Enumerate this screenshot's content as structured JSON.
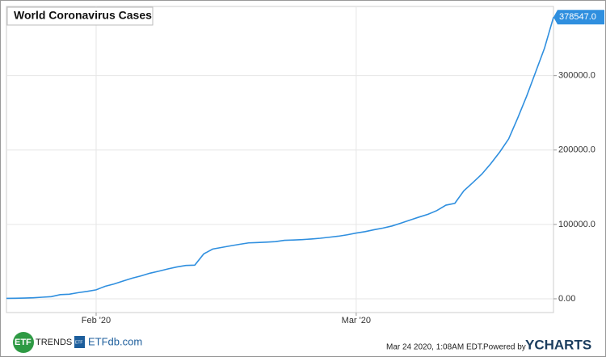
{
  "chart_data": {
    "type": "line",
    "title": "World Coronavirus Cases",
    "categories": [
      null,
      null,
      null,
      null,
      null,
      null,
      null,
      null,
      null,
      null,
      "Feb '20",
      null,
      null,
      null,
      null,
      null,
      null,
      null,
      null,
      null,
      null,
      null,
      null,
      null,
      null,
      null,
      null,
      null,
      null,
      null,
      null,
      null,
      null,
      null,
      null,
      null,
      null,
      null,
      null,
      "Mar '20",
      null,
      null,
      null,
      null,
      null,
      null,
      null,
      null,
      null,
      null,
      null,
      null,
      null,
      null,
      null,
      null,
      null,
      null,
      null,
      null,
      null,
      null
    ],
    "values": [
      555,
      654,
      941,
      1434,
      2118,
      2927,
      5578,
      6166,
      8234,
      9927,
      12038,
      16787,
      19881,
      23892,
      27635,
      30794,
      34391,
      37120,
      40150,
      42762,
      44802,
      45221,
      60368,
      66885,
      69030,
      71224,
      73258,
      75136,
      75639,
      76197,
      76823,
      78579,
      78965,
      79568,
      80413,
      81395,
      82754,
      84120,
      86011,
      88369,
      90306,
      92840,
      95120,
      97886,
      101800,
      105847,
      109821,
      113590,
      118620,
      125875,
      128343,
      145193,
      156097,
      167449,
      181546,
      197168,
      214915,
      242713,
      272167,
      304528,
      336953,
      378547
    ],
    "value_labels": [
      null,
      null,
      null,
      null,
      null,
      null,
      null,
      null,
      null,
      null,
      null,
      null,
      null,
      null,
      null,
      null,
      null,
      null,
      null,
      null,
      null,
      null,
      null,
      null,
      null,
      null,
      null,
      null,
      null,
      null,
      null,
      null,
      null,
      null,
      null,
      null,
      null,
      null,
      null,
      null,
      null,
      null,
      null,
      null,
      null,
      null,
      null,
      null,
      null,
      null,
      null,
      null,
      null,
      null,
      null,
      null,
      null,
      null,
      null,
      null,
      null,
      "378547.0"
    ],
    "color": "#2f8fdf",
    "ylim": [
      -18500,
      393000
    ],
    "yticks": [
      {
        "value": 0,
        "label": "0.00"
      },
      {
        "value": 100000,
        "label": "100000.0"
      },
      {
        "value": 200000,
        "label": "200000.0"
      },
      {
        "value": 300000,
        "label": "300000.0"
      }
    ],
    "grid": true
  },
  "footer": {
    "logo1_mark": "ETF",
    "logo1_text": "TRENDS",
    "logo2_mark": "ETF",
    "logo2_text": "ETFdb.com",
    "timestamp": "Mar 24 2020, 1:08AM EDT.",
    "powered": "Powered by",
    "brand": "YCHARTS"
  }
}
